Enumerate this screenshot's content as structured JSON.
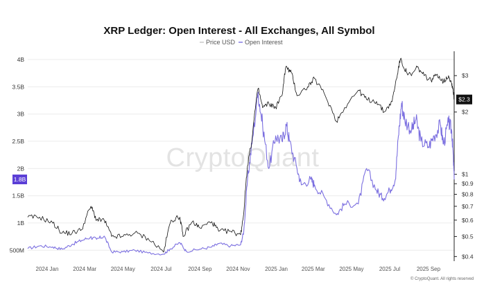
{
  "chart_data": {
    "type": "line",
    "title": "XRP Ledger: Open Interest - All Exchanges, All Symbol",
    "legend": [
      {
        "name": "Price USD",
        "color": "#bbbbbb"
      },
      {
        "name": "Open Interest",
        "color": "#7b6fe0"
      }
    ],
    "watermark": "CryptoQuant",
    "copyright": "© CryptoQuant. All rights reserved",
    "x_labels": [
      "2024 Jan",
      "2024 Mar",
      "2024 May",
      "2024 Jul",
      "2024 Sep",
      "2024 Nov",
      "2025 Jan",
      "2025 Mar",
      "2025 May",
      "2025 Jul",
      "2025 Sep"
    ],
    "x_range": [
      "2023-12-01",
      "2025-10-12"
    ],
    "y_left": {
      "label": "Open Interest",
      "ticks": [
        "4B",
        "3.5B",
        "3B",
        "2.5B",
        "2B",
        "1.5B",
        "1B",
        "500M"
      ],
      "tick_values": [
        4000000000,
        3500000000,
        3000000000,
        2500000000,
        2000000000,
        1500000000,
        1000000000,
        500000000
      ],
      "ylim": [
        300000000,
        4050000000
      ]
    },
    "y_right": {
      "label": "Price USD",
      "scale": "log",
      "ticks": [
        "$3",
        "$2",
        "$1",
        "$0.9",
        "$0.8",
        "$0.7",
        "$0.6",
        "$0.5",
        "$0.4"
      ],
      "tick_values": [
        3,
        2,
        1,
        0.9,
        0.8,
        0.7,
        0.6,
        0.5,
        0.4
      ],
      "ylim": [
        0.38,
        3.7
      ]
    },
    "current_open_interest_label": "1.8B",
    "current_price_label": "$2.3",
    "series": [
      {
        "name": "Open Interest",
        "axis": "left",
        "color": "#7b6fe0",
        "points": [
          [
            "2023-12-01",
            530000000
          ],
          [
            "2023-12-20",
            580000000
          ],
          [
            "2024-01-10",
            560000000
          ],
          [
            "2024-01-25",
            520000000
          ],
          [
            "2024-02-10",
            610000000
          ],
          [
            "2024-02-25",
            680000000
          ],
          [
            "2024-03-10",
            740000000
          ],
          [
            "2024-03-20",
            700000000
          ],
          [
            "2024-04-01",
            760000000
          ],
          [
            "2024-04-13",
            470000000
          ],
          [
            "2024-05-01",
            470000000
          ],
          [
            "2024-05-20",
            500000000
          ],
          [
            "2024-06-10",
            450000000
          ],
          [
            "2024-07-05",
            430000000
          ],
          [
            "2024-07-15",
            520000000
          ],
          [
            "2024-07-31",
            640000000
          ],
          [
            "2024-08-10",
            480000000
          ],
          [
            "2024-09-01",
            520000000
          ],
          [
            "2024-09-20",
            560000000
          ],
          [
            "2024-10-01",
            620000000
          ],
          [
            "2024-10-20",
            580000000
          ],
          [
            "2024-11-05",
            600000000
          ],
          [
            "2024-11-10",
            850000000
          ],
          [
            "2024-11-16",
            1800000000
          ],
          [
            "2024-11-23",
            2450000000
          ],
          [
            "2024-12-03",
            3400000000
          ],
          [
            "2024-12-10",
            2800000000
          ],
          [
            "2024-12-20",
            2000000000
          ],
          [
            "2024-12-31",
            2600000000
          ],
          [
            "2025-01-10",
            2500000000
          ],
          [
            "2025-01-17",
            2800000000
          ],
          [
            "2025-01-22",
            2500000000
          ],
          [
            "2025-02-03",
            2000000000
          ],
          [
            "2025-02-10",
            1700000000
          ],
          [
            "2025-02-25",
            1800000000
          ],
          [
            "2025-03-03",
            1700000000
          ],
          [
            "2025-03-20",
            1450000000
          ],
          [
            "2025-04-07",
            1150000000
          ],
          [
            "2025-04-20",
            1350000000
          ],
          [
            "2025-05-12",
            1350000000
          ],
          [
            "2025-05-25",
            2000000000
          ],
          [
            "2025-06-10",
            1600000000
          ],
          [
            "2025-06-20",
            1450000000
          ],
          [
            "2025-07-01",
            1600000000
          ],
          [
            "2025-07-10",
            1800000000
          ],
          [
            "2025-07-15",
            2600000000
          ],
          [
            "2025-07-20",
            3200000000
          ],
          [
            "2025-07-25",
            2900000000
          ],
          [
            "2025-08-05",
            2700000000
          ],
          [
            "2025-08-12",
            2900000000
          ],
          [
            "2025-08-20",
            2500000000
          ],
          [
            "2025-09-01",
            2400000000
          ],
          [
            "2025-09-10",
            2600000000
          ],
          [
            "2025-09-20",
            2800000000
          ],
          [
            "2025-09-25",
            2450000000
          ],
          [
            "2025-10-03",
            2850000000
          ],
          [
            "2025-10-08",
            2700000000
          ],
          [
            "2025-10-10",
            2350000000
          ],
          [
            "2025-10-12",
            1800000000
          ]
        ]
      },
      {
        "name": "Price USD",
        "axis": "right",
        "color": "#111111",
        "points": [
          [
            "2023-12-01",
            0.62
          ],
          [
            "2023-12-20",
            0.62
          ],
          [
            "2024-01-10",
            0.58
          ],
          [
            "2024-01-25",
            0.52
          ],
          [
            "2024-02-10",
            0.52
          ],
          [
            "2024-02-25",
            0.54
          ],
          [
            "2024-03-11",
            0.7
          ],
          [
            "2024-03-20",
            0.6
          ],
          [
            "2024-04-01",
            0.6
          ],
          [
            "2024-04-13",
            0.5
          ],
          [
            "2024-05-01",
            0.5
          ],
          [
            "2024-05-20",
            0.52
          ],
          [
            "2024-06-10",
            0.49
          ],
          [
            "2024-07-05",
            0.42
          ],
          [
            "2024-07-17",
            0.6
          ],
          [
            "2024-07-31",
            0.62
          ],
          [
            "2024-08-05",
            0.5
          ],
          [
            "2024-08-20",
            0.59
          ],
          [
            "2024-09-01",
            0.55
          ],
          [
            "2024-09-20",
            0.59
          ],
          [
            "2024-10-01",
            0.53
          ],
          [
            "2024-10-20",
            0.53
          ],
          [
            "2024-11-05",
            0.51
          ],
          [
            "2024-11-10",
            0.65
          ],
          [
            "2024-11-16",
            1.1
          ],
          [
            "2024-11-23",
            1.45
          ],
          [
            "2024-12-03",
            2.6
          ],
          [
            "2024-12-10",
            2.1
          ],
          [
            "2024-12-20",
            2.2
          ],
          [
            "2024-12-31",
            2.1
          ],
          [
            "2025-01-10",
            2.4
          ],
          [
            "2025-01-16",
            3.3
          ],
          [
            "2025-01-25",
            3.1
          ],
          [
            "2025-02-03",
            2.4
          ],
          [
            "2025-02-20",
            2.65
          ],
          [
            "2025-03-03",
            2.9
          ],
          [
            "2025-03-20",
            2.4
          ],
          [
            "2025-04-07",
            1.8
          ],
          [
            "2025-04-20",
            2.1
          ],
          [
            "2025-05-12",
            2.55
          ],
          [
            "2025-05-25",
            2.3
          ],
          [
            "2025-06-10",
            2.25
          ],
          [
            "2025-06-22",
            2.0
          ],
          [
            "2025-07-05",
            2.25
          ],
          [
            "2025-07-12",
            2.9
          ],
          [
            "2025-07-18",
            3.6
          ],
          [
            "2025-07-28",
            3.1
          ],
          [
            "2025-08-05",
            3.0
          ],
          [
            "2025-08-14",
            3.3
          ],
          [
            "2025-08-25",
            3.0
          ],
          [
            "2025-09-05",
            2.85
          ],
          [
            "2025-09-15",
            3.05
          ],
          [
            "2025-09-25",
            2.8
          ],
          [
            "2025-10-03",
            3.0
          ],
          [
            "2025-10-08",
            2.75
          ],
          [
            "2025-10-10",
            2.6
          ],
          [
            "2025-10-12",
            2.3
          ]
        ]
      }
    ]
  }
}
